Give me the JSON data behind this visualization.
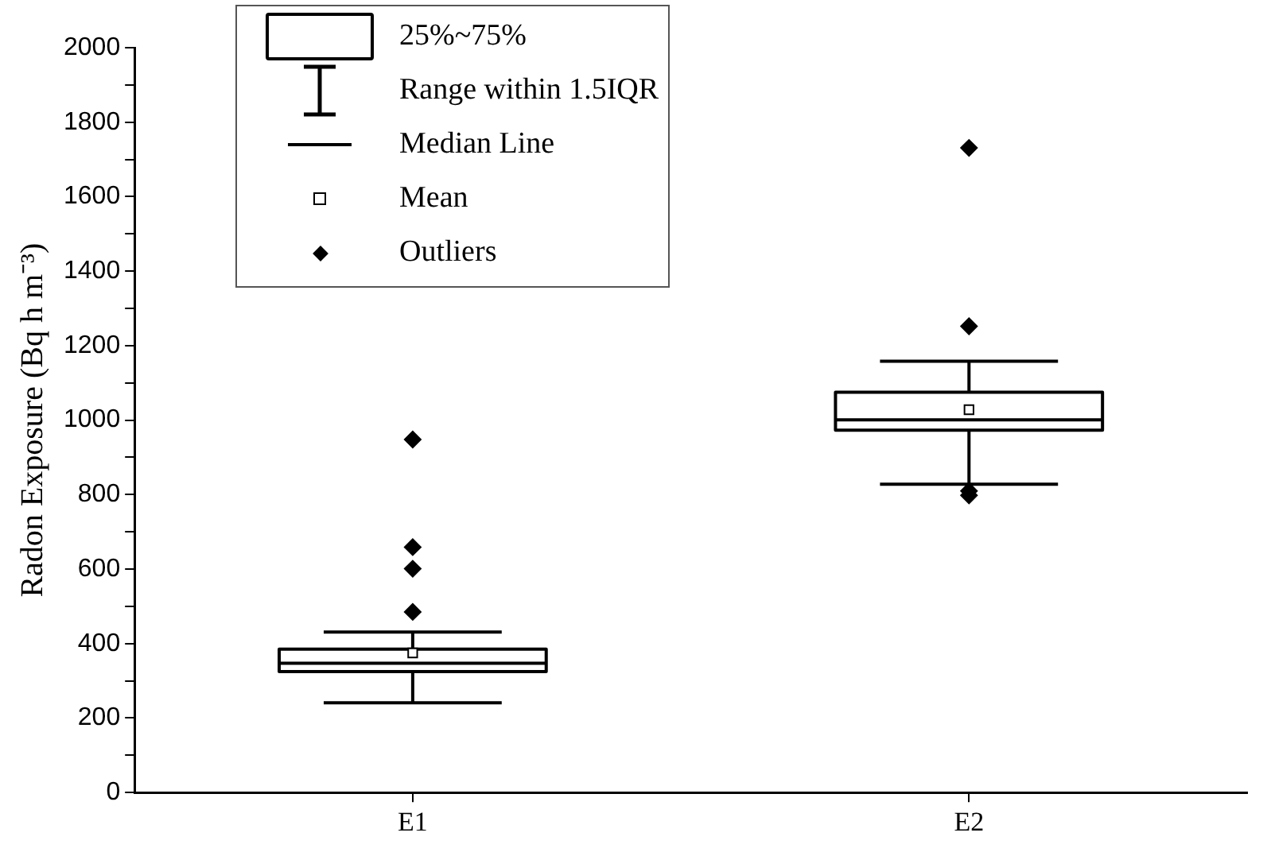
{
  "chart_data": {
    "type": "box",
    "ylabel": "Radon Exposure (Bq h m⁻³)",
    "categories": [
      "E1",
      "E2"
    ],
    "boxes": [
      {
        "low": 241,
        "q1": 325,
        "median": 347,
        "q3": 385,
        "high": 431,
        "mean": 375,
        "outliers": [
          485,
          601,
          659,
          948
        ]
      },
      {
        "low": 828,
        "q1": 973,
        "median": 1001,
        "q3": 1075,
        "high": 1158,
        "mean": 1028,
        "outliers": [
          798,
          810,
          1252,
          1731
        ]
      }
    ],
    "ylim": [
      0,
      2000
    ],
    "yticks": [
      0,
      {
        "value": 100,
        "label": null
      },
      200,
      {
        "value": 300,
        "label": null
      },
      400,
      {
        "value": 500,
        "label": null
      },
      600,
      {
        "value": 700,
        "label": null
      },
      800,
      {
        "value": 900,
        "label": null
      },
      1000,
      {
        "value": 1100,
        "label": null
      },
      1200,
      {
        "value": 1300,
        "label": null
      },
      1400,
      {
        "value": 1500,
        "label": null
      },
      1600,
      {
        "value": 1700,
        "label": null
      },
      1800,
      {
        "value": 1900,
        "label": null
      },
      2000
    ],
    "grid": false,
    "annotations": [
      "25%~75%",
      "Range within 1.5IQR",
      "Median Line",
      "Mean",
      "Outliers"
    ]
  }
}
